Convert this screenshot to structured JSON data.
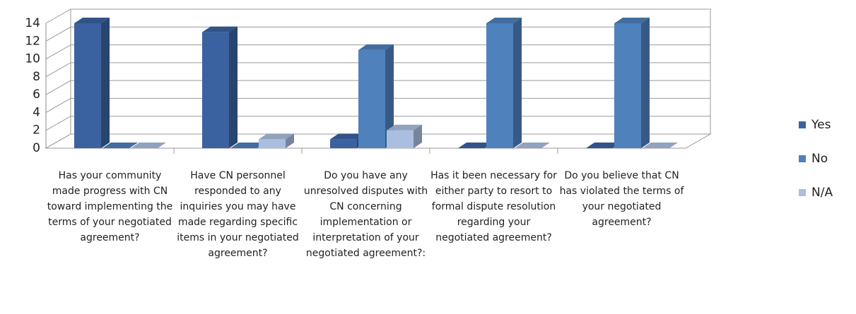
{
  "chart_data": {
    "type": "bar3d",
    "categories": [
      "Has your community made progress with CN toward implementing the terms of your negotiated agreement?",
      "Have CN personnel responded to any inquiries you may have made regarding specific items in your negotiated agreement?",
      "Do you have any unresolved disputes with CN concerning implementation or interpretation of your negotiated agreement?:",
      "Has it been necessary for either party to resort to formal dispute resolution regarding your negotiated agreement?",
      "Do you believe that CN has violated the terms of your negotiated agreement?"
    ],
    "series": [
      {
        "name": "Yes",
        "color": "#3b62a0",
        "values": [
          14,
          13,
          1,
          0,
          0
        ]
      },
      {
        "name": "No",
        "color": "#4f81bd",
        "values": [
          0,
          0,
          11,
          14,
          14
        ]
      },
      {
        "name": "N/A",
        "color": "#aabfe0",
        "values": [
          0,
          1,
          2,
          0,
          0
        ]
      }
    ],
    "ylim": [
      0,
      14
    ],
    "yticks": [
      0,
      2,
      4,
      6,
      8,
      10,
      12,
      14
    ],
    "grid": true,
    "legend": "right"
  }
}
